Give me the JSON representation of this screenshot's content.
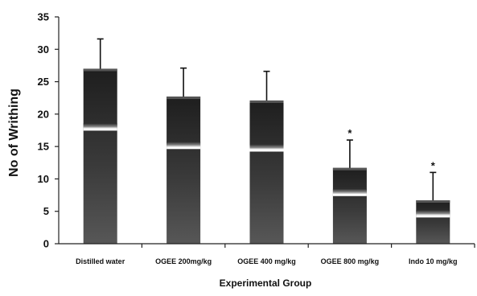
{
  "chart_data": {
    "type": "bar",
    "categories": [
      "Distilled water",
      "OGEE 200mg/kg",
      "OGEE 400 mg/kg",
      "OGEE 800 mg/kg",
      "Indo 10 mg/kg"
    ],
    "values": [
      27,
      22.7,
      22.1,
      11.7,
      6.7
    ],
    "error": [
      4.6,
      4.4,
      4.5,
      4.3,
      4.3
    ],
    "significance": [
      "",
      "",
      "",
      "*",
      "*"
    ],
    "xlabel": "Experimental Group",
    "ylabel": "No of Writhing",
    "ylim": [
      0,
      35
    ],
    "yticks": [
      0,
      5,
      10,
      15,
      20,
      25,
      30,
      35
    ],
    "grid": false,
    "bar_color": "#2a2a2a"
  }
}
